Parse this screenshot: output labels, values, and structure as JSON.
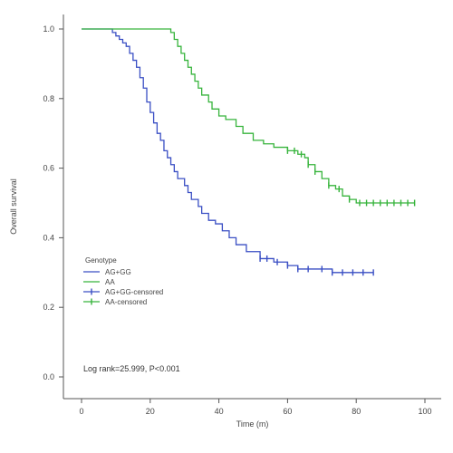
{
  "chart_data": {
    "type": "line",
    "title": "",
    "xlabel": "Time (m)",
    "ylabel": "Overall survival",
    "xlim": [
      0,
      100
    ],
    "ylim": [
      0,
      1
    ],
    "x_ticks": [
      0,
      20,
      40,
      60,
      80,
      100
    ],
    "x_tick_labels": [
      "0",
      "20",
      "40",
      "60",
      "80",
      "100"
    ],
    "y_ticks": [
      0,
      0.2,
      0.4,
      0.6,
      0.8,
      1.0
    ],
    "y_tick_labels": [
      "0.0",
      "0.2",
      "0.4",
      "0.6",
      "0.8",
      "1.0"
    ],
    "grid": false,
    "legend_title": "Genotype",
    "legend_position": "lower-left",
    "legend_entries": [
      "AG+GG",
      "AA",
      "AG+GG-censored",
      "AA-censored"
    ],
    "annotation": "Log rank=25.999, P<0.001",
    "series": [
      {
        "name": "AG+GG",
        "color": "#3a4fc4",
        "steps": [
          [
            0,
            1.0
          ],
          [
            7,
            1.0
          ],
          [
            9,
            0.99
          ],
          [
            10,
            0.98
          ],
          [
            11,
            0.97
          ],
          [
            12,
            0.96
          ],
          [
            13,
            0.95
          ],
          [
            14,
            0.93
          ],
          [
            15,
            0.91
          ],
          [
            16,
            0.89
          ],
          [
            17,
            0.86
          ],
          [
            18,
            0.83
          ],
          [
            19,
            0.79
          ],
          [
            20,
            0.76
          ],
          [
            21,
            0.73
          ],
          [
            22,
            0.7
          ],
          [
            23,
            0.68
          ],
          [
            24,
            0.65
          ],
          [
            25,
            0.63
          ],
          [
            26,
            0.61
          ],
          [
            27,
            0.59
          ],
          [
            28,
            0.57
          ],
          [
            30,
            0.55
          ],
          [
            31,
            0.53
          ],
          [
            32,
            0.51
          ],
          [
            34,
            0.49
          ],
          [
            35,
            0.47
          ],
          [
            37,
            0.45
          ],
          [
            39,
            0.44
          ],
          [
            41,
            0.42
          ],
          [
            43,
            0.4
          ],
          [
            45,
            0.38
          ],
          [
            48,
            0.36
          ],
          [
            52,
            0.34
          ],
          [
            56,
            0.33
          ],
          [
            60,
            0.32
          ],
          [
            63,
            0.31
          ],
          [
            68,
            0.31
          ],
          [
            73,
            0.3
          ],
          [
            75,
            0.3
          ],
          [
            85,
            0.3
          ]
        ],
        "censored": [
          52,
          54,
          57,
          60,
          63,
          66,
          70,
          73,
          76,
          79,
          82,
          85
        ]
      },
      {
        "name": "AA",
        "color": "#37b43c",
        "steps": [
          [
            0,
            1.0
          ],
          [
            25,
            1.0
          ],
          [
            26,
            0.99
          ],
          [
            27,
            0.97
          ],
          [
            28,
            0.95
          ],
          [
            29,
            0.93
          ],
          [
            30,
            0.91
          ],
          [
            31,
            0.89
          ],
          [
            32,
            0.87
          ],
          [
            33,
            0.85
          ],
          [
            34,
            0.83
          ],
          [
            35,
            0.81
          ],
          [
            37,
            0.79
          ],
          [
            38,
            0.77
          ],
          [
            40,
            0.75
          ],
          [
            42,
            0.74
          ],
          [
            45,
            0.72
          ],
          [
            47,
            0.7
          ],
          [
            50,
            0.68
          ],
          [
            53,
            0.67
          ],
          [
            56,
            0.66
          ],
          [
            60,
            0.65
          ],
          [
            63,
            0.64
          ],
          [
            65,
            0.63
          ],
          [
            66,
            0.61
          ],
          [
            68,
            0.59
          ],
          [
            70,
            0.57
          ],
          [
            72,
            0.55
          ],
          [
            74,
            0.54
          ],
          [
            76,
            0.52
          ],
          [
            78,
            0.51
          ],
          [
            80,
            0.5
          ],
          [
            90,
            0.5
          ],
          [
            97,
            0.5
          ]
        ],
        "censored": [
          60,
          62,
          64,
          66,
          68,
          72,
          75,
          78,
          81,
          83,
          85,
          87,
          89,
          91,
          93,
          95,
          97
        ]
      }
    ]
  }
}
